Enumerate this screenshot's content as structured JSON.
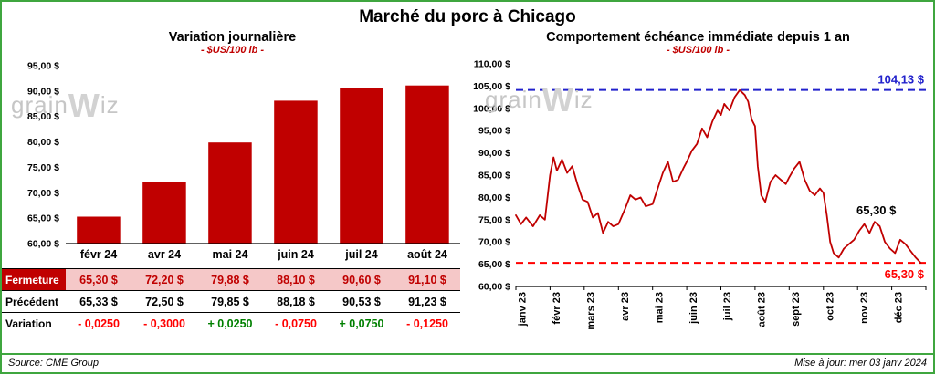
{
  "page": {
    "title": "Marché du porc à Chicago",
    "source": "Source: CME Group",
    "updated": "Mise à jour: mer 03 janv 2024"
  },
  "watermark": {
    "pre": "grain",
    "w": "W",
    "post": "iz"
  },
  "colors": {
    "border_green": "#3FA63F",
    "dark_red": "#C00000",
    "bright_red": "#FF0000",
    "pos_green": "#008000",
    "blue": "#2222CC",
    "fermeture_bg": "#F5C8C8",
    "watermark_gray": "#C6C6C6"
  },
  "table": {
    "rows": [
      {
        "label": "Fermeture",
        "values": [
          "65,30 $",
          "72,20 $",
          "79,88 $",
          "88,10 $",
          "90,60 $",
          "91,10 $"
        ]
      },
      {
        "label": "Précédent",
        "values": [
          "65,33 $",
          "72,50 $",
          "79,85 $",
          "88,18 $",
          "90,53 $",
          "91,23 $"
        ]
      },
      {
        "label": "Variation",
        "values": [
          "- 0,0250",
          "- 0,3000",
          "+ 0,0250",
          "- 0,0750",
          "+ 0,0750",
          "- 0,1250"
        ],
        "signs": [
          "neg",
          "neg",
          "pos",
          "neg",
          "pos",
          "neg"
        ]
      }
    ]
  },
  "chart_data": [
    {
      "type": "bar",
      "title": "Variation  journalière",
      "subtitle": "- $US/100 lb -",
      "categories": [
        "févr 24",
        "avr 24",
        "mai 24",
        "juin 24",
        "juil 24",
        "août 24"
      ],
      "values": [
        65.3,
        72.2,
        79.88,
        88.1,
        90.6,
        91.1
      ],
      "ylim": [
        60,
        95
      ],
      "ytick_step": 5,
      "bar_color": "#C00000",
      "grid": false,
      "ytick_format": "fr-dollar"
    },
    {
      "type": "line",
      "title": "Comportement  échéance  immédiate  depuis 1 an",
      "subtitle": "- $US/100 lb -",
      "x_labels": [
        "janv 23",
        "févr 23",
        "mars 23",
        "avr 23",
        "mai 23",
        "juin 23",
        "juil 23",
        "août 23",
        "sept 23",
        "oct 23",
        "nov 23",
        "déc 23"
      ],
      "ylim": [
        60,
        110
      ],
      "ytick_step": 5,
      "grid": false,
      "series": [
        {
          "name": "échéance immédiate",
          "color": "#C00000",
          "points": [
            [
              0,
              76
            ],
            [
              0.15,
              74
            ],
            [
              0.3,
              75.5
            ],
            [
              0.5,
              73.5
            ],
            [
              0.7,
              76
            ],
            [
              0.85,
              75
            ],
            [
              1.0,
              85
            ],
            [
              1.1,
              89
            ],
            [
              1.2,
              86
            ],
            [
              1.35,
              88.5
            ],
            [
              1.5,
              85.5
            ],
            [
              1.65,
              87
            ],
            [
              1.8,
              83
            ],
            [
              1.95,
              79.5
            ],
            [
              2.1,
              79
            ],
            [
              2.25,
              75.5
            ],
            [
              2.4,
              76.5
            ],
            [
              2.55,
              72
            ],
            [
              2.7,
              74.5
            ],
            [
              2.85,
              73.5
            ],
            [
              3.0,
              74
            ],
            [
              3.2,
              77.5
            ],
            [
              3.35,
              80.5
            ],
            [
              3.5,
              79.5
            ],
            [
              3.65,
              80
            ],
            [
              3.8,
              78
            ],
            [
              4.0,
              78.5
            ],
            [
              4.15,
              82
            ],
            [
              4.3,
              85.5
            ],
            [
              4.45,
              88
            ],
            [
              4.6,
              83.5
            ],
            [
              4.75,
              84
            ],
            [
              4.9,
              86.5
            ],
            [
              5.0,
              88
            ],
            [
              5.15,
              90.5
            ],
            [
              5.3,
              92
            ],
            [
              5.45,
              95.5
            ],
            [
              5.6,
              93.5
            ],
            [
              5.75,
              97
            ],
            [
              5.9,
              99.5
            ],
            [
              6.0,
              98.5
            ],
            [
              6.1,
              101
            ],
            [
              6.25,
              99.5
            ],
            [
              6.4,
              102.5
            ],
            [
              6.55,
              104.1
            ],
            [
              6.7,
              103
            ],
            [
              6.8,
              101.5
            ],
            [
              6.9,
              97.5
            ],
            [
              7.0,
              96
            ],
            [
              7.08,
              87
            ],
            [
              7.18,
              80.5
            ],
            [
              7.3,
              79
            ],
            [
              7.45,
              83.5
            ],
            [
              7.6,
              85
            ],
            [
              7.75,
              84
            ],
            [
              7.9,
              83
            ],
            [
              8.0,
              84.5
            ],
            [
              8.15,
              86.5
            ],
            [
              8.3,
              88
            ],
            [
              8.45,
              84
            ],
            [
              8.6,
              81.5
            ],
            [
              8.75,
              80.5
            ],
            [
              8.9,
              82
            ],
            [
              9.0,
              81
            ],
            [
              9.1,
              76
            ],
            [
              9.2,
              70
            ],
            [
              9.3,
              67.5
            ],
            [
              9.45,
              66.5
            ],
            [
              9.6,
              68.5
            ],
            [
              9.75,
              69.5
            ],
            [
              9.9,
              70.5
            ],
            [
              10.05,
              72.5
            ],
            [
              10.2,
              74
            ],
            [
              10.35,
              72
            ],
            [
              10.5,
              74.5
            ],
            [
              10.65,
              73.5
            ],
            [
              10.8,
              70
            ],
            [
              10.95,
              68.5
            ],
            [
              11.1,
              67.5
            ],
            [
              11.25,
              70.5
            ],
            [
              11.4,
              69.5
            ],
            [
              11.55,
              68
            ],
            [
              11.7,
              66.5
            ],
            [
              11.85,
              65.3
            ]
          ]
        }
      ],
      "hlines": [
        {
          "value": 104.13,
          "color": "#2222CC",
          "label": "104,13 $",
          "label_pos": "above"
        },
        {
          "value": 65.3,
          "color": "#FF0000",
          "label": "65,30 $",
          "label_pos": "below"
        }
      ],
      "annotations": [
        {
          "x": 10.55,
          "y": 76.2,
          "text": "65,30 $",
          "color": "#000000"
        }
      ]
    }
  ]
}
